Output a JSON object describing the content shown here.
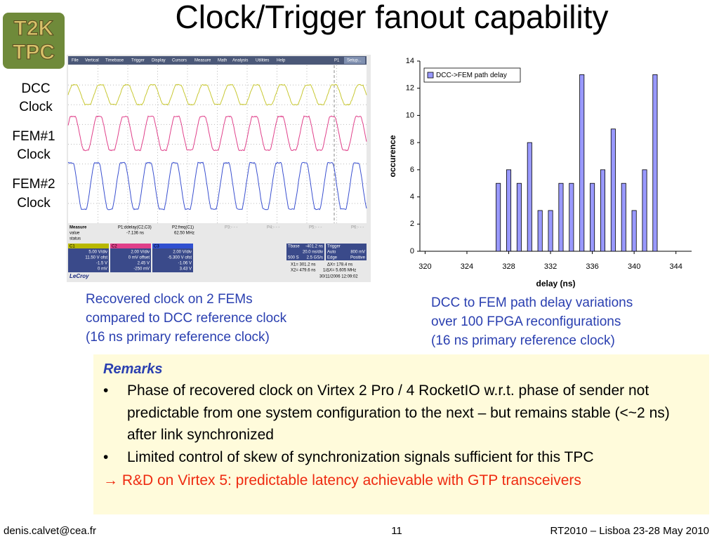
{
  "title": "Clock/Trigger fanout capability",
  "logo": [
    "T2K",
    "TPC"
  ],
  "signal_labels": [
    [
      "DCC",
      "Clock"
    ],
    [
      "FEM#1",
      "Clock"
    ],
    [
      "FEM#2",
      "Clock"
    ]
  ],
  "scope": {
    "menu": [
      "File",
      "Vertical",
      "Timebase",
      "Trigger",
      "Display",
      "Cursors",
      "Measure",
      "Math",
      "Analysis",
      "Utilities",
      "Help",
      "P1",
      "Setup..."
    ],
    "measure": {
      "header": [
        "Measure",
        "P1:ddelay(C2,C3)",
        "P2:freq(C1)",
        "P3:- - -",
        "P4:- - -",
        "P5:- - -",
        "P6:- - -"
      ],
      "value": [
        "value",
        "-7.136 ns",
        "62.50 MHz"
      ],
      "status": "status"
    },
    "channels": [
      {
        "name": "C1",
        "scale": "5.00 V/div",
        "offset": "11.50 V ofst",
        "readings": [
          "-1.5 V",
          "0 mV"
        ]
      },
      {
        "name": "C2",
        "scale": "2.00 V/div",
        "offset": "0 mV offset",
        "readings": [
          "2.45 V",
          "-250 mV"
        ]
      },
      {
        "name": "C3",
        "scale": "2.00 V/div",
        "offset": "-5.300 V ofst",
        "readings": [
          "-1.06 V",
          "3.43 V"
        ]
      }
    ],
    "timebase": [
      "Tbase",
      "-401.2 ns",
      "20.0 ns/div",
      "500 S",
      "2.5 GS/s"
    ],
    "trigger": [
      "Trigger",
      "Auto",
      "800 mV",
      "Edge",
      "Positive"
    ],
    "cursors": [
      "X1= 301.2 ns",
      "ΔX= 178.4 ns",
      "X2= 479.6 ns",
      "1/ΔX= 5.605 MHz"
    ],
    "timestamp": "30/11/2006 12:09:02",
    "brand": "LeCroy"
  },
  "scope_caption": [
    "Recovered clock on 2 FEMs",
    "compared to DCC reference clock",
    "(16 ns primary reference clock)"
  ],
  "chart_caption": [
    "DCC to FEM path delay variations",
    "over 100 FPGA reconfigurations",
    "(16 ns primary reference clock)"
  ],
  "chart_data": {
    "type": "bar",
    "x_label": "delay (ns)",
    "y_label": "occurence",
    "x": [
      327,
      328,
      329,
      330,
      331,
      332,
      333,
      334,
      335,
      336,
      337,
      338,
      339,
      340,
      341,
      342
    ],
    "series": [
      {
        "name": "DCC->FEM path delay",
        "color": "#9999ff",
        "values": [
          5,
          6,
          5,
          8,
          3,
          3,
          5,
          5,
          13,
          5,
          6,
          9,
          5,
          3,
          6,
          13
        ]
      }
    ],
    "xlim": [
      319.5,
      345.5
    ],
    "xticks": [
      320,
      324,
      328,
      332,
      336,
      340,
      344
    ],
    "ylim": [
      0,
      14
    ],
    "yticks": [
      0,
      2,
      4,
      6,
      8,
      10,
      12,
      14
    ],
    "grid": false,
    "legend": "top-left"
  },
  "remarks": {
    "heading": "Remarks",
    "bullets": [
      "Phase of recovered clock on Virtex 2 Pro / 4 RocketIO w.r.t. phase of sender not predictable from one system configuration to the next – but remains stable (<~2 ns) after link synchronized",
      "Limited control of skew of synchronization signals sufficient for this TPC"
    ],
    "conclusion": "→ R&D on Virtex 5: predictable latency achievable with GTP transceivers"
  },
  "footer": {
    "left": "denis.calvet@cea.fr",
    "center": "11",
    "right": "RT2010 – Lisboa 23-28 May 2010"
  }
}
